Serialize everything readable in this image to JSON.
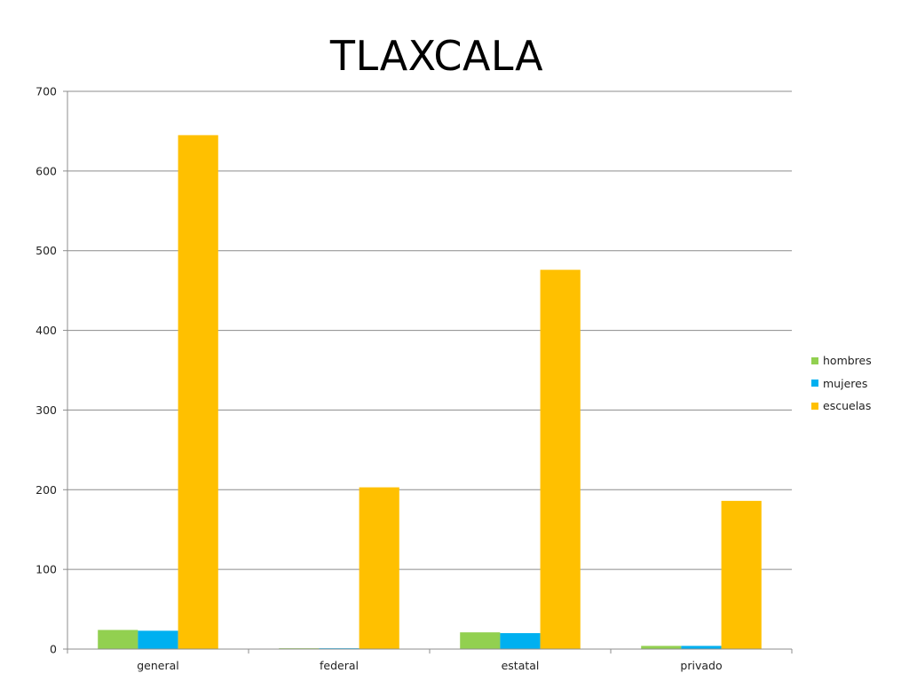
{
  "chart_data": {
    "type": "bar",
    "title": "TLAXCALA",
    "xlabel": "",
    "ylabel": "",
    "categories": [
      "general",
      "federal",
      "estatal",
      "privado"
    ],
    "series": [
      {
        "name": "hombres",
        "color": "#92D050",
        "values": [
          24,
          1,
          21,
          4
        ]
      },
      {
        "name": "mujeres",
        "color": "#00B0F0",
        "values": [
          23,
          1,
          20,
          4
        ]
      },
      {
        "name": "escuelas",
        "color": "#FFC000",
        "values": [
          645,
          203,
          476,
          186
        ]
      }
    ],
    "ylim": [
      0,
      700
    ],
    "yticks": [
      0,
      100,
      200,
      300,
      400,
      500,
      600,
      700
    ],
    "grid": true,
    "legend_position": "right"
  }
}
